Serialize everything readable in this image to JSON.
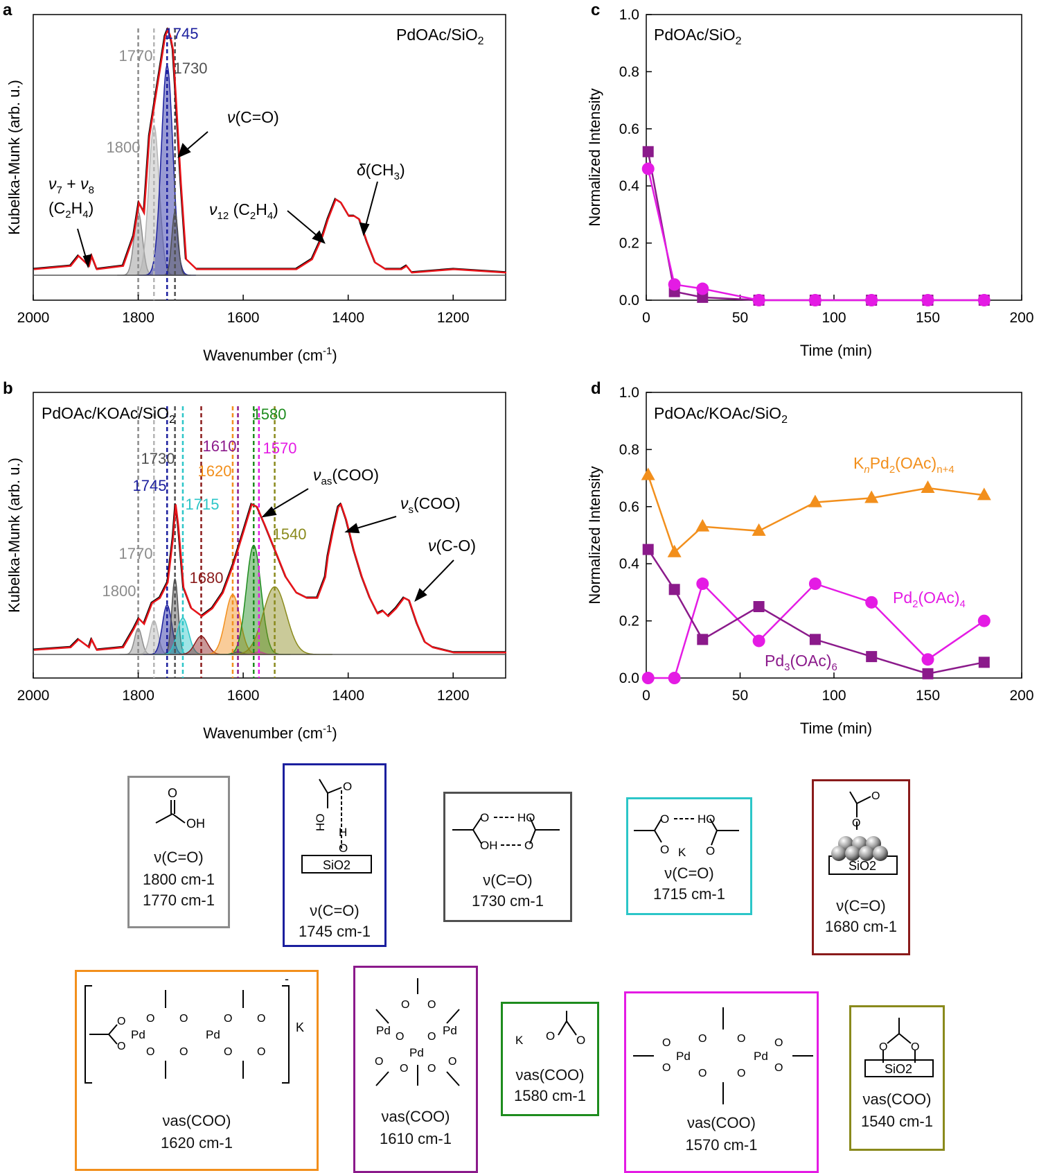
{
  "chart_data": [
    {
      "panel": "a",
      "type": "line",
      "title": "PdOAc/SiO2",
      "xlabel": "Wavenumber (cm-1)",
      "ylabel": "Kubelka-Munk (arb. u.)",
      "xlim": [
        2000,
        1100
      ],
      "xticks": [
        2000,
        1800,
        1600,
        1400,
        1200
      ],
      "spectrum": {
        "points": [
          [
            2000,
            0.02
          ],
          [
            1930,
            0.03
          ],
          [
            1915,
            0.06
          ],
          [
            1895,
            0.03
          ],
          [
            1890,
            0.06
          ],
          [
            1880,
            0.02
          ],
          [
            1830,
            0.03
          ],
          [
            1810,
            0.12
          ],
          [
            1800,
            0.22
          ],
          [
            1790,
            0.19
          ],
          [
            1780,
            0.42
          ],
          [
            1770,
            0.52
          ],
          [
            1760,
            0.62
          ],
          [
            1750,
            0.72
          ],
          [
            1745,
            0.74
          ],
          [
            1740,
            0.72
          ],
          [
            1735,
            0.68
          ],
          [
            1730,
            0.55
          ],
          [
            1720,
            0.28
          ],
          [
            1710,
            0.05
          ],
          [
            1690,
            0.02
          ],
          [
            1500,
            0.02
          ],
          [
            1470,
            0.05
          ],
          [
            1450,
            0.12
          ],
          [
            1440,
            0.17
          ],
          [
            1425,
            0.23
          ],
          [
            1415,
            0.22
          ],
          [
            1400,
            0.18
          ],
          [
            1390,
            0.18
          ],
          [
            1380,
            0.17
          ],
          [
            1365,
            0.1
          ],
          [
            1350,
            0.04
          ],
          [
            1330,
            0.02
          ],
          [
            1300,
            0.02
          ],
          [
            1290,
            0.03
          ],
          [
            1280,
            0.01
          ],
          [
            1200,
            0.02
          ],
          [
            1100,
            0.01
          ]
        ]
      },
      "peaks": [
        {
          "center": 1800,
          "height": 0.19,
          "width": 8,
          "color": "#8c8c8c",
          "label": "1800"
        },
        {
          "center": 1770,
          "height": 0.45,
          "width": 10,
          "color": "#b4b4b4",
          "label": "1770"
        },
        {
          "center": 1745,
          "height": 0.63,
          "width": 11,
          "color": "#1b1f9e",
          "label": "1745"
        },
        {
          "center": 1730,
          "height": 0.19,
          "width": 6,
          "color": "#505050",
          "label": "1730"
        }
      ],
      "annotations": [
        "ν7 + ν8 (C2H4)",
        "ν(C=O)",
        "ν12 (C2H4)",
        "δ(CH3)"
      ]
    },
    {
      "panel": "b",
      "type": "line",
      "title": "PdOAc/KOAc/SiO2",
      "xlabel": "Wavenumber (cm-1)",
      "ylabel": "Kubelka-Munk (arb. u.)",
      "xlim": [
        2000,
        1100
      ],
      "xticks": [
        2000,
        1800,
        1600,
        1400,
        1200
      ],
      "spectrum": {
        "points": [
          [
            2000,
            0.02
          ],
          [
            1930,
            0.03
          ],
          [
            1915,
            0.06
          ],
          [
            1895,
            0.03
          ],
          [
            1890,
            0.06
          ],
          [
            1880,
            0.02
          ],
          [
            1830,
            0.03
          ],
          [
            1810,
            0.1
          ],
          [
            1800,
            0.14
          ],
          [
            1790,
            0.12
          ],
          [
            1775,
            0.2
          ],
          [
            1760,
            0.22
          ],
          [
            1745,
            0.28
          ],
          [
            1735,
            0.45
          ],
          [
            1730,
            0.58
          ],
          [
            1725,
            0.5
          ],
          [
            1715,
            0.26
          ],
          [
            1700,
            0.18
          ],
          [
            1680,
            0.15
          ],
          [
            1660,
            0.18
          ],
          [
            1640,
            0.24
          ],
          [
            1620,
            0.35
          ],
          [
            1600,
            0.48
          ],
          [
            1585,
            0.58
          ],
          [
            1575,
            0.57
          ],
          [
            1560,
            0.5
          ],
          [
            1540,
            0.4
          ],
          [
            1520,
            0.3
          ],
          [
            1500,
            0.24
          ],
          [
            1480,
            0.22
          ],
          [
            1460,
            0.22
          ],
          [
            1445,
            0.3
          ],
          [
            1440,
            0.38
          ],
          [
            1430,
            0.48
          ],
          [
            1420,
            0.57
          ],
          [
            1415,
            0.58
          ],
          [
            1405,
            0.52
          ],
          [
            1390,
            0.4
          ],
          [
            1375,
            0.3
          ],
          [
            1360,
            0.22
          ],
          [
            1345,
            0.16
          ],
          [
            1335,
            0.17
          ],
          [
            1325,
            0.15
          ],
          [
            1310,
            0.18
          ],
          [
            1295,
            0.22
          ],
          [
            1285,
            0.21
          ],
          [
            1270,
            0.12
          ],
          [
            1255,
            0.05
          ],
          [
            1240,
            0.03
          ],
          [
            1200,
            0.01
          ],
          [
            1100,
            0.01
          ]
        ]
      },
      "peaks": [
        {
          "center": 1800,
          "height": 0.1,
          "width": 7,
          "color": "#8c8c8c",
          "label": "1800"
        },
        {
          "center": 1770,
          "height": 0.13,
          "width": 8,
          "color": "#b4b4b4",
          "label": "1770"
        },
        {
          "center": 1745,
          "height": 0.19,
          "width": 9,
          "color": "#1b1f9e",
          "label": "1745"
        },
        {
          "center": 1730,
          "height": 0.29,
          "width": 6,
          "color": "#505050",
          "label": "1730"
        },
        {
          "center": 1715,
          "height": 0.14,
          "width": 11,
          "color": "#2cc6c8",
          "label": "1715"
        },
        {
          "center": 1680,
          "height": 0.07,
          "width": 12,
          "color": "#8a1b1b",
          "label": "1680"
        },
        {
          "center": 1620,
          "height": 0.23,
          "width": 14,
          "color": "#f28f1c",
          "label": "1620"
        },
        {
          "center": 1610,
          "height": 0.01,
          "width": 8,
          "color": "#8b1a8b",
          "label": "1610"
        },
        {
          "center": 1580,
          "height": 0.42,
          "width": 14,
          "color": "#1e8c1e",
          "label": "1580"
        },
        {
          "center": 1570,
          "height": 0.01,
          "width": 8,
          "color": "#e41be4",
          "label": "1570"
        },
        {
          "center": 1540,
          "height": 0.26,
          "width": 22,
          "color": "#8a8a1c",
          "label": "1540"
        }
      ],
      "annotations": [
        "νas(COO)",
        "νs(COO)",
        "ν(C-O)"
      ]
    },
    {
      "panel": "c",
      "type": "line",
      "title": "PdOAc/SiO2",
      "xlabel": "Time (min)",
      "ylabel": "Normalized Intensity",
      "xlim": [
        0,
        200
      ],
      "ylim": [
        0,
        1.0
      ],
      "xticks": [
        0,
        50,
        100,
        150,
        200
      ],
      "yticks": [
        0.0,
        0.2,
        0.4,
        0.6,
        0.8,
        1.0
      ],
      "x": [
        1,
        15,
        30,
        60,
        90,
        120,
        150,
        180
      ],
      "series": [
        {
          "name": "Pd3(OAc)6",
          "marker": "square",
          "color": "#8b1a8b",
          "values": [
            0.52,
            0.03,
            0.01,
            0.0,
            0.0,
            0.0,
            0.0,
            0.0
          ]
        },
        {
          "name": "Pd2(OAc)4",
          "marker": "circle",
          "color": "#e41be4",
          "values": [
            0.46,
            0.055,
            0.04,
            0.0,
            0.0,
            0.0,
            0.0,
            0.0
          ]
        }
      ]
    },
    {
      "panel": "d",
      "type": "line",
      "title": "PdOAc/KOAc/SiO2",
      "xlabel": "Time (min)",
      "ylabel": "Normalized Intensity",
      "xlim": [
        0,
        200
      ],
      "ylim": [
        0,
        1.0
      ],
      "xticks": [
        0,
        50,
        100,
        150,
        200
      ],
      "yticks": [
        0.0,
        0.2,
        0.4,
        0.6,
        0.8,
        1.0
      ],
      "x": [
        1,
        15,
        30,
        60,
        90,
        120,
        150,
        180
      ],
      "series": [
        {
          "name": "KnPd2(OAc)n+4",
          "marker": "triangle",
          "color": "#f28f1c",
          "values": [
            0.71,
            0.44,
            0.53,
            0.515,
            0.615,
            0.63,
            0.665,
            0.64
          ]
        },
        {
          "name": "Pd2(OAc)4",
          "marker": "circle",
          "color": "#e41be4",
          "values": [
            0.0,
            0.0,
            0.33,
            0.13,
            0.33,
            0.265,
            0.065,
            0.2
          ]
        },
        {
          "name": "Pd3(OAc)6",
          "marker": "square",
          "color": "#8b1a8b",
          "values": [
            0.45,
            0.31,
            0.135,
            0.25,
            0.135,
            0.075,
            0.015,
            0.055
          ]
        }
      ]
    }
  ],
  "texts": {
    "a": {
      "letter": "a",
      "title_main": "PdOAc/SiO",
      "title_sub": "2",
      "ylabel": "Kubelka-Munk (arb. u.)",
      "xlabel_main": "Wavenumber (cm",
      "xlabel_sup": "-1",
      "xlabel_end": ")",
      "peak_1745": "1745",
      "peak_1770": "1770",
      "peak_1730": "1730",
      "peak_1800": "1800",
      "ann_nu": "ν",
      "ann_7": "7",
      "ann_plus": " + ",
      "ann_8": "8",
      "ann_c2h4_open": "(C",
      "ann_c2h4_2": "2",
      "ann_c2h4_h": "H",
      "ann_c2h4_4": "4",
      "ann_c2h4_close": ")",
      "ann_co": "(C=O)",
      "ann_12": "12",
      "ann_c2h4_inline": " (C",
      "ann_delta": "δ",
      "ann_ch3_open": "(CH",
      "ann_ch3_3": "3",
      "ann_ch3_close": ")"
    },
    "b": {
      "letter": "b",
      "title_main": "PdOAc/KOAc/SiO",
      "title_sub": "2",
      "ylabel": "Kubelka-Munk (arb. u.)",
      "xlabel_main": "Wavenumber (cm",
      "xlabel_sup": "-1",
      "xlabel_end": ")",
      "peak_1580": "1580",
      "peak_1610": "1610",
      "peak_1570": "1570",
      "peak_1730": "1730",
      "peak_1620": "1620",
      "peak_1745": "1745",
      "peak_1715": "1715",
      "peak_1540": "1540",
      "peak_1770": "1770",
      "peak_1680": "1680",
      "peak_1800": "1800",
      "ann_nu": "ν",
      "ann_as": "as",
      "ann_s": "s",
      "ann_coo": "(COO)",
      "ann_co": "(C-O)"
    },
    "c": {
      "letter": "c",
      "title_main": "PdOAc/SiO",
      "title_sub": "2",
      "ylabel": "Normalized Intensity",
      "xlabel": "Time (min)"
    },
    "d": {
      "letter": "d",
      "title_main": "PdOAc/KOAc/SiO",
      "title_sub": "2",
      "ylabel": "Normalized Intensity",
      "xlabel": "Time (min)",
      "label_k_main": "K",
      "label_k_n": "n",
      "label_k_pd": "Pd",
      "label_k_2": "2",
      "label_k_oac": "(OAc)",
      "label_k_sub": "n+4",
      "label_pd2_main": "Pd",
      "label_pd2_2": "2",
      "label_pd2_oac": "(OAc)",
      "label_pd2_4": "4",
      "label_pd3_main": "Pd",
      "label_pd3_3": "3",
      "label_pd3_oac": "(OAc)",
      "label_pd3_6": "6"
    }
  },
  "cards": [
    {
      "id": "c1800",
      "color": "#8c8c8c",
      "line1": "ν(C=O)",
      "line2": "1800 cm-1",
      "line3": "1770 cm-1",
      "oh": "OH",
      "o": "O"
    },
    {
      "id": "c1745",
      "color": "#1b1f9e",
      "line1": "ν(C=O)",
      "line2": "1745 cm-1",
      "sio2": "SiO2",
      "ho": "HO",
      "o": "O",
      "h": "H"
    },
    {
      "id": "c1730",
      "color": "#505050",
      "line1": "ν(C=O)",
      "line2": "1730 cm-1",
      "o1": "O",
      "ho": "HO",
      "oh": "OH",
      "o2": "O"
    },
    {
      "id": "c1715",
      "color": "#2cc6c8",
      "line1": "ν(C=O)",
      "line2": "1715 cm-1",
      "o1": "O",
      "ho": "HO",
      "k": "K",
      "o2": "O"
    },
    {
      "id": "c1680",
      "color": "#8a1b1b",
      "line1": "ν(C=O)",
      "line2": "1680 cm-1",
      "sio2": "SiO2",
      "o": "O"
    },
    {
      "id": "c1620",
      "color": "#f28f1c",
      "line1": "νas(COO)",
      "line2": "1620 cm-1",
      "pd": "Pd",
      "o": "O",
      "k": "K",
      "minus": "-"
    },
    {
      "id": "c1610",
      "color": "#8b1a8b",
      "line1": "νas(COO)",
      "line2": "1610 cm-1",
      "pd": "Pd",
      "o": "O"
    },
    {
      "id": "c1580",
      "color": "#1e8c1e",
      "line1": "νas(COO)",
      "line2": "1580 cm-1",
      "k": "K",
      "o": "O"
    },
    {
      "id": "c1570",
      "color": "#e41be4",
      "line1": "νas(COO)",
      "line2": "1570 cm-1",
      "pd": "Pd",
      "o": "O"
    },
    {
      "id": "c1540",
      "color": "#8a8a1c",
      "line1": "νas(COO)",
      "line2": "1540 cm-1",
      "sio2": "SiO2",
      "o": "O"
    }
  ]
}
